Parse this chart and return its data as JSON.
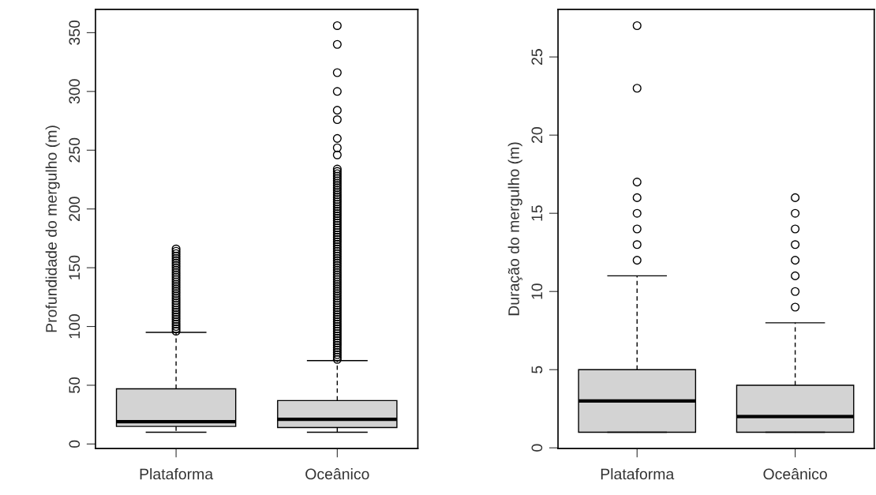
{
  "chart_data": [
    {
      "type": "box",
      "ylabel": "Profundidade do mergulho (m)",
      "categories": [
        "Plataforma",
        "Oceânico"
      ],
      "color": "#d3d3d3",
      "ylim": [
        -3.8,
        369.8
      ],
      "yticks": [
        0,
        50,
        100,
        150,
        200,
        250,
        300,
        350
      ],
      "grid": false,
      "boxes": [
        {
          "low": 10,
          "q1": 15,
          "median": 19,
          "q3": 47,
          "high": 95,
          "outliers": [
            96,
            98,
            100,
            102,
            104,
            106,
            108,
            110,
            112,
            114,
            116,
            118,
            120,
            122,
            124,
            126,
            128,
            130,
            132,
            134,
            136,
            138,
            140,
            142,
            144,
            146,
            148,
            150,
            152,
            154,
            156,
            158,
            160,
            162,
            164,
            166
          ]
        },
        {
          "low": 10,
          "q1": 14,
          "median": 21,
          "q3": 37,
          "high": 71,
          "outliers": [
            72,
            74,
            76,
            78,
            80,
            82,
            84,
            86,
            88,
            90,
            92,
            94,
            96,
            98,
            100,
            102,
            104,
            106,
            108,
            110,
            112,
            114,
            116,
            118,
            120,
            122,
            124,
            126,
            128,
            130,
            132,
            134,
            136,
            138,
            140,
            142,
            144,
            146,
            148,
            150,
            152,
            154,
            156,
            158,
            160,
            162,
            164,
            166,
            168,
            170,
            172,
            174,
            176,
            178,
            180,
            182,
            184,
            186,
            188,
            190,
            192,
            194,
            196,
            198,
            200,
            202,
            204,
            206,
            208,
            210,
            212,
            214,
            216,
            218,
            220,
            222,
            224,
            226,
            228,
            230,
            232,
            234,
            246,
            252,
            260,
            276,
            284,
            300,
            316,
            340,
            356
          ]
        }
      ]
    },
    {
      "type": "box",
      "ylabel": "Duração do mergulho (m)",
      "categories": [
        "Plataforma",
        "Oceânico"
      ],
      "color": "#d3d3d3",
      "ylim": [
        -0.04,
        28.04
      ],
      "yticks": [
        0,
        5,
        10,
        15,
        20,
        25
      ],
      "grid": false,
      "boxes": [
        {
          "low": 1,
          "q1": 1,
          "median": 3,
          "q3": 5,
          "high": 11,
          "outliers": [
            12,
            13,
            14,
            15,
            16,
            17,
            23,
            27
          ]
        },
        {
          "low": 1,
          "q1": 1,
          "median": 2,
          "q3": 4,
          "high": 8,
          "outliers": [
            9,
            10,
            11,
            12,
            13,
            14,
            15,
            16
          ]
        }
      ]
    }
  ]
}
